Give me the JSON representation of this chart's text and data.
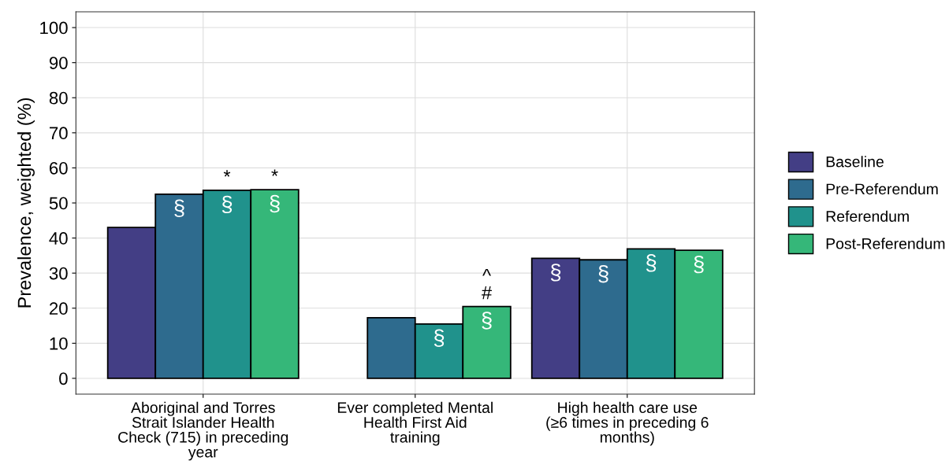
{
  "chart_data": {
    "type": "bar",
    "ylabel": "Prevalence, weighted (%)",
    "categories": [
      "Aboriginal and Torres\nStrait Islander Health\nCheck (715) in preceding\nyear",
      "Ever completed Mental\nHealth First Aid\ntraining",
      "High health care use\n(≥6 times in preceding 6\nmonths)"
    ],
    "series": [
      {
        "name": "Baseline",
        "color": "#433e85",
        "values": [
          43.0,
          null,
          34.2
        ],
        "value_labels": [
          null,
          null,
          "§"
        ]
      },
      {
        "name": "Pre-Referendum",
        "color": "#2e6b8e",
        "values": [
          52.5,
          17.3,
          33.8
        ],
        "value_labels": [
          "§",
          null,
          "§"
        ]
      },
      {
        "name": "Referendum",
        "color": "#20928c",
        "values": [
          53.6,
          15.5,
          36.9
        ],
        "value_labels": [
          "*\n§",
          "§",
          "§"
        ]
      },
      {
        "name": "Post-Referendum",
        "color": "#35b779",
        "values": [
          53.8,
          20.5,
          36.5
        ],
        "value_labels": [
          "*\n§",
          "^\n#\n§",
          "§"
        ]
      }
    ],
    "ylim": [
      -4.5,
      104.5
    ],
    "yticks": [
      0,
      10,
      20,
      30,
      40,
      50,
      60,
      70,
      80,
      90,
      100
    ],
    "grid": true,
    "legend": "right"
  }
}
